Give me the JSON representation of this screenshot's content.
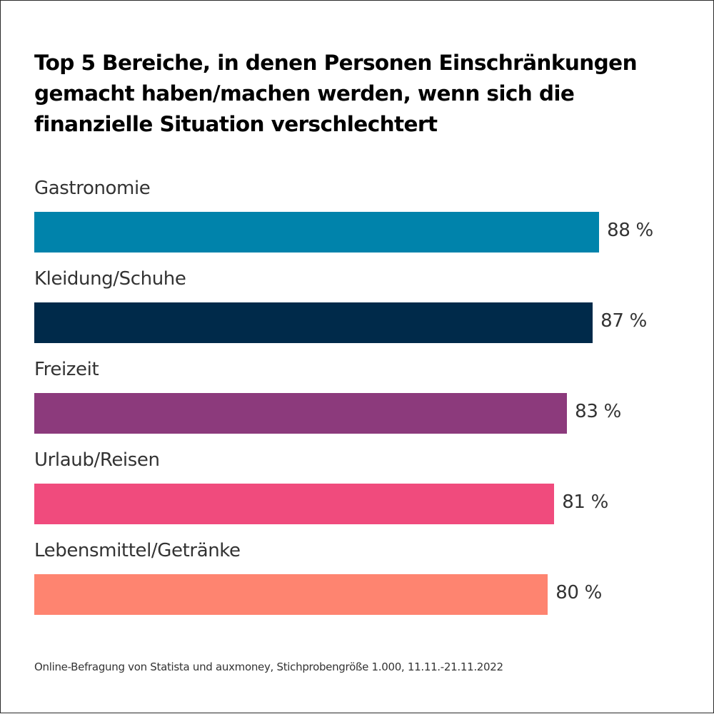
{
  "chart_data": {
    "type": "bar",
    "orientation": "horizontal",
    "title": "Top 5 Bereiche, in denen Personen Einschränkungen gemacht haben/machen werden, wenn sich die finanzielle Situation verschlechtert",
    "categories": [
      "Gastronomie",
      "Kleidung/Schuhe",
      "Freizeit",
      "Urlaub/Reisen",
      "Lebensmittel/Getränke"
    ],
    "values": [
      88,
      87,
      83,
      81,
      80
    ],
    "value_labels": [
      "88 %",
      "87 %",
      "83 %",
      "81 %",
      "80 %"
    ],
    "colors": [
      "#0083ab",
      "#002a4a",
      "#8c3a7c",
      "#f04b7d",
      "#fe8470"
    ],
    "unit": "%",
    "xlim": [
      0,
      100
    ],
    "xlabel": "",
    "ylabel": "",
    "grid": false,
    "legend": "none",
    "source": "Online-Befragung von Statista und auxmoney, Stichprobengröße 1.000, 11.11.-21.11.2022"
  }
}
